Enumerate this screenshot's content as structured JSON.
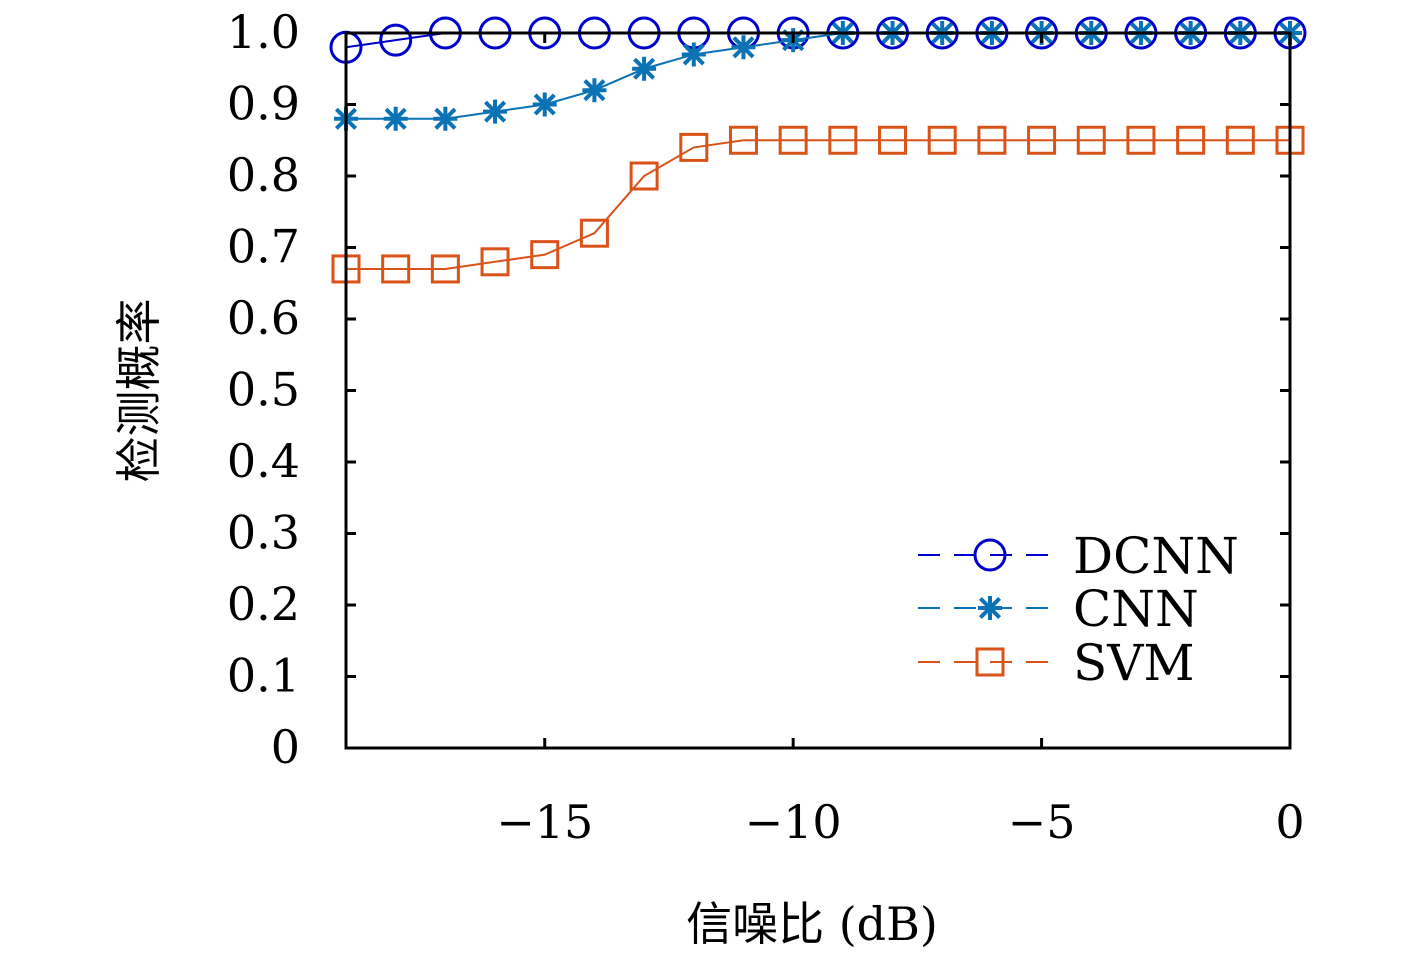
{
  "chart_data": {
    "type": "line",
    "title": "",
    "xlabel": "信噪比 (dB)",
    "ylabel": "检测概率",
    "xlim": [
      -19,
      0
    ],
    "ylim": [
      0,
      1
    ],
    "x_ticks": [
      -15,
      -10,
      -5,
      0
    ],
    "x_tick_labels": [
      "−15",
      "−10",
      "−5",
      "0"
    ],
    "y_ticks": [
      0,
      0.1,
      0.2,
      0.3,
      0.4,
      0.5,
      0.6,
      0.7,
      0.8,
      0.9,
      1.0
    ],
    "y_tick_labels": [
      "0",
      "0.1",
      "0.2",
      "0.3",
      "0.4",
      "0.5",
      "0.6",
      "0.7",
      "0.8",
      "0.9",
      "1.0"
    ],
    "grid": false,
    "legend_position": "bottom-right",
    "x": [
      -19,
      -18,
      -17,
      -16,
      -15,
      -14,
      -13,
      -12,
      -11,
      -10,
      -9,
      -8,
      -7,
      -6,
      -5,
      -4,
      -3,
      -2,
      -1,
      0
    ],
    "series": [
      {
        "name": "DCNN",
        "marker": "circle",
        "color": "#0000cc",
        "values": [
          0.98,
          0.99,
          1.0,
          1.0,
          1.0,
          1.0,
          1.0,
          1.0,
          1.0,
          1.0,
          1.0,
          1.0,
          1.0,
          1.0,
          1.0,
          1.0,
          1.0,
          1.0,
          1.0,
          1.0
        ]
      },
      {
        "name": "CNN",
        "marker": "asterisk",
        "color": "#0a72b5",
        "values": [
          0.88,
          0.88,
          0.88,
          0.89,
          0.9,
          0.92,
          0.95,
          0.97,
          0.98,
          0.99,
          1.0,
          1.0,
          1.0,
          1.0,
          1.0,
          1.0,
          1.0,
          1.0,
          1.0,
          1.0
        ]
      },
      {
        "name": "SVM",
        "marker": "square",
        "color": "#d95319",
        "values": [
          0.67,
          0.67,
          0.67,
          0.68,
          0.69,
          0.72,
          0.8,
          0.84,
          0.85,
          0.85,
          0.85,
          0.85,
          0.85,
          0.85,
          0.85,
          0.85,
          0.85,
          0.85,
          0.85,
          0.85
        ]
      }
    ]
  }
}
